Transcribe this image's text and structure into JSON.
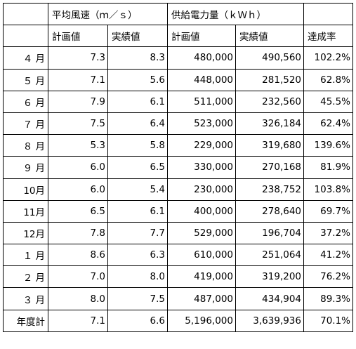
{
  "header": {
    "wind_group": "平均風速（ｍ／ｓ）",
    "power_group": "供給電力量（ｋＷｈ）",
    "sub": {
      "wind_plan": "計画値",
      "wind_actual": "実績値",
      "power_plan": "計画値",
      "power_actual": "実績値",
      "rate": "達成率"
    }
  },
  "rows": [
    {
      "month": "４ 月",
      "wind_plan": "7.3",
      "wind_actual": "8.3",
      "power_plan": "480,000",
      "power_actual": "490,560",
      "rate": "102.2%"
    },
    {
      "month": "５ 月",
      "wind_plan": "7.1",
      "wind_actual": "5.6",
      "power_plan": "448,000",
      "power_actual": "281,520",
      "rate": "62.8%"
    },
    {
      "month": "６ 月",
      "wind_plan": "7.9",
      "wind_actual": "6.1",
      "power_plan": "511,000",
      "power_actual": "232,560",
      "rate": "45.5%"
    },
    {
      "month": "７ 月",
      "wind_plan": "7.5",
      "wind_actual": "6.4",
      "power_plan": "523,000",
      "power_actual": "326,184",
      "rate": "62.4%"
    },
    {
      "month": "８ 月",
      "wind_plan": "5.3",
      "wind_actual": "5.8",
      "power_plan": "229,000",
      "power_actual": "319,680",
      "rate": "139.6%"
    },
    {
      "month": "９ 月",
      "wind_plan": "6.0",
      "wind_actual": "6.5",
      "power_plan": "330,000",
      "power_actual": "270,168",
      "rate": "81.9%"
    },
    {
      "month": "10月",
      "wind_plan": "6.0",
      "wind_actual": "5.4",
      "power_plan": "230,000",
      "power_actual": "238,752",
      "rate": "103.8%"
    },
    {
      "month": "11月",
      "wind_plan": "6.5",
      "wind_actual": "6.1",
      "power_plan": "400,000",
      "power_actual": "278,640",
      "rate": "69.7%"
    },
    {
      "month": "12月",
      "wind_plan": "7.8",
      "wind_actual": "7.7",
      "power_plan": "529,000",
      "power_actual": "196,704",
      "rate": "37.2%"
    },
    {
      "month": "１ 月",
      "wind_plan": "8.6",
      "wind_actual": "6.3",
      "power_plan": "610,000",
      "power_actual": "251,064",
      "rate": "41.2%"
    },
    {
      "month": "２ 月",
      "wind_plan": "7.0",
      "wind_actual": "8.0",
      "power_plan": "419,000",
      "power_actual": "319,200",
      "rate": "76.2%"
    },
    {
      "month": "３ 月",
      "wind_plan": "8.0",
      "wind_actual": "7.5",
      "power_plan": "487,000",
      "power_actual": "434,904",
      "rate": "89.3%"
    }
  ],
  "total": {
    "month": "年度計",
    "wind_plan": "7.1",
    "wind_actual": "6.6",
    "power_plan": "5,196,000",
    "power_actual": "3,639,936",
    "rate": "70.1%"
  }
}
